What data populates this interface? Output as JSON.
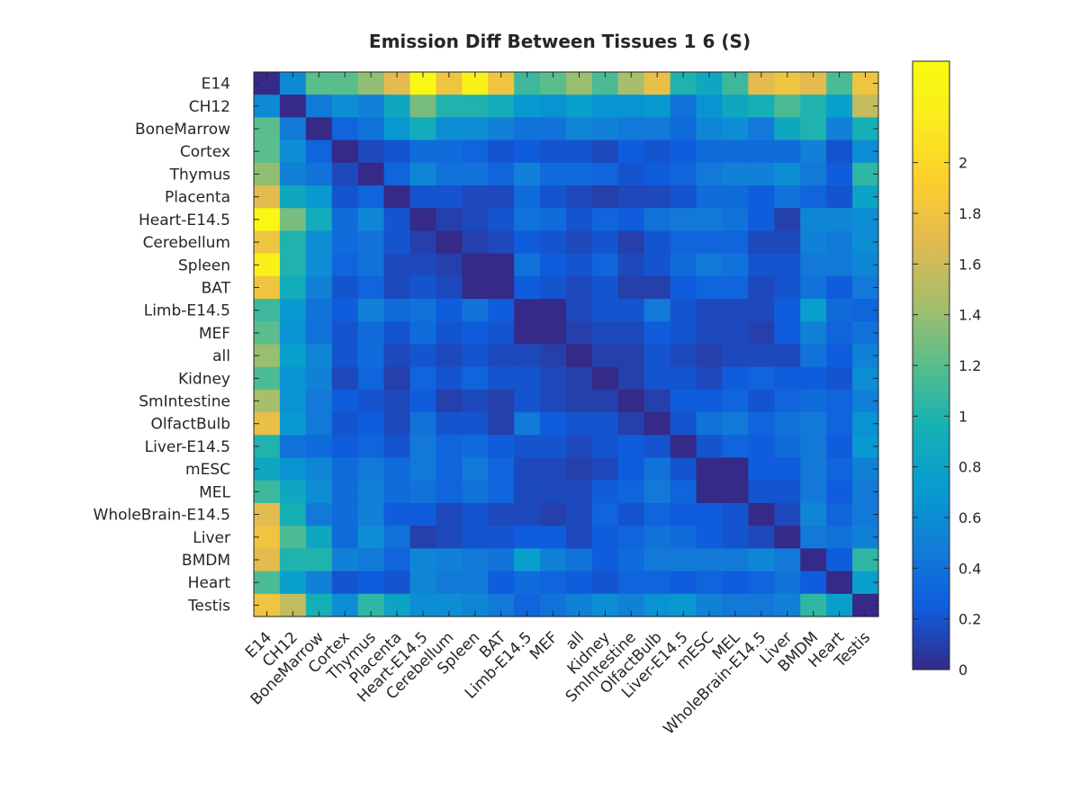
{
  "chart_data": {
    "type": "heatmap",
    "title": "Emission Diff Between Tissues 1 6 (S)",
    "xlabel": "",
    "ylabel": "",
    "labels": [
      "E14",
      "CH12",
      "BoneMarrow",
      "Cortex",
      "Thymus",
      "Placenta",
      "Heart-E14.5",
      "Cerebellum",
      "Spleen",
      "BAT",
      "Limb-E14.5",
      "MEF",
      "all",
      "Kidney",
      "SmIntestine",
      "OlfactBulb",
      "Liver-E14.5",
      "mESC",
      "MEL",
      "WholeBrain-E14.5",
      "Liver",
      "BMDM",
      "Heart",
      "Testis"
    ],
    "colorbar": {
      "range": [
        0,
        2.4
      ],
      "ticks": [
        "0",
        "0.2",
        "0.4",
        "0.6",
        "0.8",
        "1",
        "1.2",
        "1.4",
        "1.6",
        "1.8",
        "2"
      ],
      "tick_values": [
        0,
        0.2,
        0.4,
        0.6,
        0.8,
        1,
        1.2,
        1.4,
        1.6,
        1.8,
        2
      ],
      "colormap": "parula"
    },
    "matrix": [
      [
        0.0,
        0.58,
        1.2,
        1.2,
        1.38,
        1.7,
        2.35,
        1.8,
        2.25,
        1.8,
        1.1,
        1.2,
        1.4,
        1.15,
        1.45,
        1.75,
        1.0,
        0.85,
        1.1,
        1.7,
        1.8,
        1.7,
        1.15,
        1.8
      ],
      [
        0.58,
        0.0,
        0.45,
        0.6,
        0.5,
        0.85,
        1.3,
        1.0,
        1.0,
        0.9,
        0.7,
        0.65,
        0.75,
        0.65,
        0.65,
        0.7,
        0.4,
        0.65,
        0.85,
        0.95,
        1.15,
        1.0,
        0.75,
        1.55
      ],
      [
        1.2,
        0.45,
        0.0,
        0.3,
        0.4,
        0.7,
        0.9,
        0.6,
        0.6,
        0.5,
        0.4,
        0.4,
        0.55,
        0.5,
        0.45,
        0.45,
        0.35,
        0.55,
        0.6,
        0.45,
        0.85,
        1.0,
        0.5,
        0.95
      ],
      [
        1.2,
        0.6,
        0.3,
        0.0,
        0.15,
        0.2,
        0.35,
        0.35,
        0.3,
        0.2,
        0.25,
        0.2,
        0.2,
        0.15,
        0.25,
        0.2,
        0.25,
        0.35,
        0.35,
        0.35,
        0.35,
        0.5,
        0.2,
        0.6
      ],
      [
        1.38,
        0.5,
        0.4,
        0.15,
        0.0,
        0.3,
        0.55,
        0.4,
        0.4,
        0.3,
        0.5,
        0.35,
        0.35,
        0.3,
        0.2,
        0.25,
        0.3,
        0.45,
        0.5,
        0.5,
        0.6,
        0.45,
        0.25,
        1.05
      ],
      [
        1.7,
        0.85,
        0.7,
        0.2,
        0.3,
        0.0,
        0.2,
        0.2,
        0.15,
        0.15,
        0.35,
        0.2,
        0.15,
        0.1,
        0.15,
        0.15,
        0.2,
        0.35,
        0.35,
        0.25,
        0.4,
        0.3,
        0.2,
        0.8
      ],
      [
        2.35,
        1.3,
        0.9,
        0.35,
        0.55,
        0.2,
        0.0,
        0.1,
        0.15,
        0.2,
        0.4,
        0.35,
        0.2,
        0.3,
        0.25,
        0.4,
        0.45,
        0.45,
        0.4,
        0.25,
        0.1,
        0.55,
        0.55,
        0.6
      ],
      [
        1.8,
        1.0,
        0.6,
        0.35,
        0.4,
        0.2,
        0.1,
        0.0,
        0.1,
        0.15,
        0.25,
        0.2,
        0.15,
        0.2,
        0.1,
        0.2,
        0.3,
        0.3,
        0.3,
        0.15,
        0.15,
        0.5,
        0.45,
        0.6
      ],
      [
        2.25,
        1.0,
        0.6,
        0.3,
        0.4,
        0.15,
        0.15,
        0.1,
        0.0,
        0.0,
        0.4,
        0.25,
        0.2,
        0.3,
        0.15,
        0.2,
        0.35,
        0.45,
        0.4,
        0.2,
        0.2,
        0.45,
        0.45,
        0.55
      ],
      [
        1.8,
        0.9,
        0.5,
        0.2,
        0.3,
        0.15,
        0.2,
        0.15,
        0.0,
        0.0,
        0.25,
        0.2,
        0.15,
        0.2,
        0.1,
        0.1,
        0.25,
        0.3,
        0.3,
        0.15,
        0.2,
        0.4,
        0.25,
        0.45
      ],
      [
        1.1,
        0.7,
        0.4,
        0.25,
        0.5,
        0.35,
        0.4,
        0.25,
        0.4,
        0.25,
        0.0,
        0.0,
        0.15,
        0.2,
        0.2,
        0.45,
        0.2,
        0.15,
        0.15,
        0.15,
        0.25,
        0.75,
        0.35,
        0.3
      ],
      [
        1.2,
        0.65,
        0.4,
        0.2,
        0.35,
        0.2,
        0.35,
        0.2,
        0.25,
        0.2,
        0.0,
        0.0,
        0.1,
        0.15,
        0.15,
        0.25,
        0.2,
        0.15,
        0.15,
        0.1,
        0.25,
        0.5,
        0.3,
        0.4
      ],
      [
        1.4,
        0.75,
        0.55,
        0.2,
        0.35,
        0.15,
        0.2,
        0.15,
        0.2,
        0.15,
        0.15,
        0.1,
        0.0,
        0.1,
        0.1,
        0.2,
        0.15,
        0.1,
        0.15,
        0.15,
        0.15,
        0.4,
        0.25,
        0.5
      ],
      [
        1.15,
        0.65,
        0.5,
        0.15,
        0.3,
        0.1,
        0.3,
        0.2,
        0.3,
        0.2,
        0.2,
        0.15,
        0.1,
        0.0,
        0.1,
        0.2,
        0.2,
        0.15,
        0.25,
        0.3,
        0.25,
        0.25,
        0.2,
        0.6
      ],
      [
        1.45,
        0.65,
        0.45,
        0.25,
        0.2,
        0.15,
        0.25,
        0.1,
        0.15,
        0.1,
        0.2,
        0.15,
        0.1,
        0.1,
        0.0,
        0.1,
        0.25,
        0.25,
        0.3,
        0.2,
        0.3,
        0.35,
        0.3,
        0.5
      ],
      [
        1.75,
        0.7,
        0.45,
        0.2,
        0.25,
        0.15,
        0.4,
        0.2,
        0.2,
        0.1,
        0.45,
        0.25,
        0.2,
        0.2,
        0.1,
        0.0,
        0.2,
        0.4,
        0.45,
        0.3,
        0.4,
        0.45,
        0.3,
        0.65
      ],
      [
        1.0,
        0.4,
        0.35,
        0.25,
        0.3,
        0.2,
        0.45,
        0.3,
        0.35,
        0.25,
        0.2,
        0.2,
        0.15,
        0.2,
        0.25,
        0.2,
        0.0,
        0.2,
        0.3,
        0.25,
        0.35,
        0.45,
        0.25,
        0.7
      ],
      [
        0.85,
        0.65,
        0.55,
        0.35,
        0.45,
        0.35,
        0.45,
        0.3,
        0.45,
        0.3,
        0.15,
        0.15,
        0.1,
        0.15,
        0.25,
        0.4,
        0.2,
        0.0,
        0.0,
        0.25,
        0.25,
        0.45,
        0.3,
        0.5
      ],
      [
        1.1,
        0.85,
        0.6,
        0.35,
        0.5,
        0.35,
        0.4,
        0.3,
        0.4,
        0.3,
        0.15,
        0.15,
        0.15,
        0.25,
        0.3,
        0.45,
        0.3,
        0.0,
        0.0,
        0.2,
        0.2,
        0.45,
        0.25,
        0.45
      ],
      [
        1.7,
        0.95,
        0.45,
        0.35,
        0.5,
        0.25,
        0.25,
        0.15,
        0.2,
        0.15,
        0.15,
        0.1,
        0.15,
        0.3,
        0.2,
        0.3,
        0.25,
        0.25,
        0.2,
        0.0,
        0.15,
        0.55,
        0.3,
        0.45
      ],
      [
        1.8,
        1.15,
        0.85,
        0.35,
        0.6,
        0.4,
        0.1,
        0.15,
        0.2,
        0.2,
        0.25,
        0.25,
        0.15,
        0.25,
        0.3,
        0.4,
        0.35,
        0.25,
        0.2,
        0.15,
        0.0,
        0.45,
        0.4,
        0.5
      ],
      [
        1.7,
        1.0,
        1.0,
        0.5,
        0.45,
        0.3,
        0.55,
        0.5,
        0.45,
        0.4,
        0.75,
        0.5,
        0.4,
        0.25,
        0.35,
        0.45,
        0.45,
        0.45,
        0.45,
        0.55,
        0.45,
        0.0,
        0.25,
        1.05
      ],
      [
        1.15,
        0.75,
        0.5,
        0.2,
        0.25,
        0.2,
        0.55,
        0.45,
        0.45,
        0.25,
        0.35,
        0.3,
        0.25,
        0.2,
        0.3,
        0.3,
        0.25,
        0.3,
        0.25,
        0.3,
        0.4,
        0.25,
        0.0,
        0.75
      ],
      [
        1.8,
        1.55,
        0.95,
        0.6,
        1.05,
        0.8,
        0.6,
        0.6,
        0.55,
        0.45,
        0.3,
        0.4,
        0.5,
        0.6,
        0.5,
        0.65,
        0.7,
        0.5,
        0.45,
        0.45,
        0.5,
        1.05,
        0.75,
        0.0
      ]
    ]
  }
}
